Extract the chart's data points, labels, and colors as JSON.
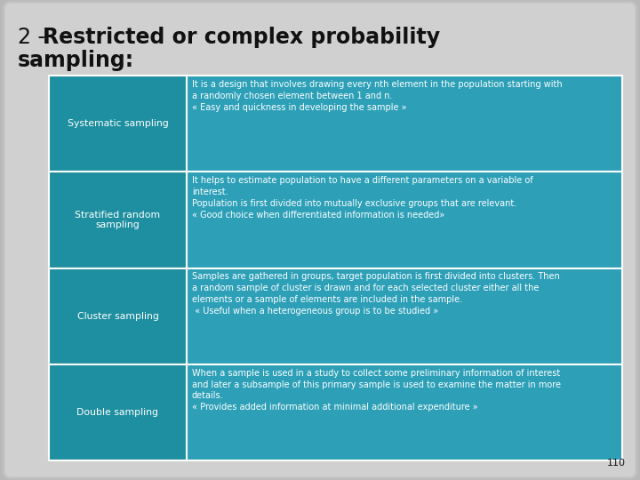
{
  "outer_bg": "#b8b8b8",
  "slide_bg": "#d0d0d0",
  "slide_edge": "#aaaaaa",
  "teal_light": "#2da0b8",
  "teal_dark": "#1e8fa0",
  "white": "#ffffff",
  "black": "#111111",
  "page_number": "110",
  "title_line1_normal": "2 - ",
  "title_line1_bold": "Restricted or complex probability",
  "title_line2_bold": "sampling:",
  "title_fontsize": 17,
  "rows": [
    {
      "label": "Systematic sampling",
      "description": "It is a design that involves drawing every nth element in the population starting with\na randomly chosen element between 1 and n.\n« Easy and quickness in developing the sample »"
    },
    {
      "label": "Stratified random\nsampling",
      "description": "It helps to estimate population to have a different parameters on a variable of\ninterest.\nPopulation is first divided into mutually exclusive groups that are relevant.\n« Good choice when differentiated information is needed»"
    },
    {
      "label": "Cluster sampling",
      "description": "Samples are gathered in groups, target population is first divided into clusters. Then\na random sample of cluster is drawn and for each selected cluster either all the\nelements or a sample of elements are included in the sample.\n « Useful when a heterogeneous group is to be studied »"
    },
    {
      "label": "Double sampling",
      "description": "When a sample is used in a study to collect some preliminary information of interest\nand later a subsample of this primary sample is used to examine the matter in more\ndetails.\n« Provides added information at minimal additional expenditure »"
    }
  ]
}
